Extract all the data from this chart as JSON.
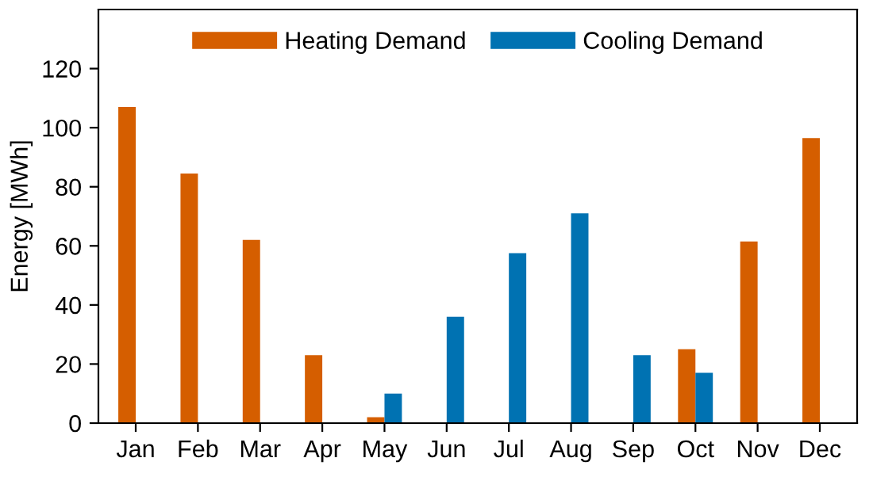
{
  "chart_data": {
    "type": "bar",
    "ylabel": "Energy [MWh]",
    "categories": [
      "Jan",
      "Feb",
      "Mar",
      "Apr",
      "May",
      "Jun",
      "Jul",
      "Aug",
      "Sep",
      "Oct",
      "Nov",
      "Dec"
    ],
    "series": [
      {
        "name": "Heating Demand",
        "color": "#d55e00",
        "values": [
          107,
          84.5,
          62,
          23,
          2,
          null,
          null,
          null,
          null,
          25,
          61.5,
          96.5
        ]
      },
      {
        "name": "Cooling Demand",
        "color": "#0072b2",
        "values": [
          null,
          null,
          null,
          null,
          10,
          36,
          57.5,
          71,
          23,
          17,
          null,
          null
        ]
      }
    ],
    "ylim": [
      0,
      140
    ],
    "yticks": [
      0,
      20,
      40,
      60,
      80,
      100,
      120
    ],
    "grid": false,
    "legend": "top"
  }
}
